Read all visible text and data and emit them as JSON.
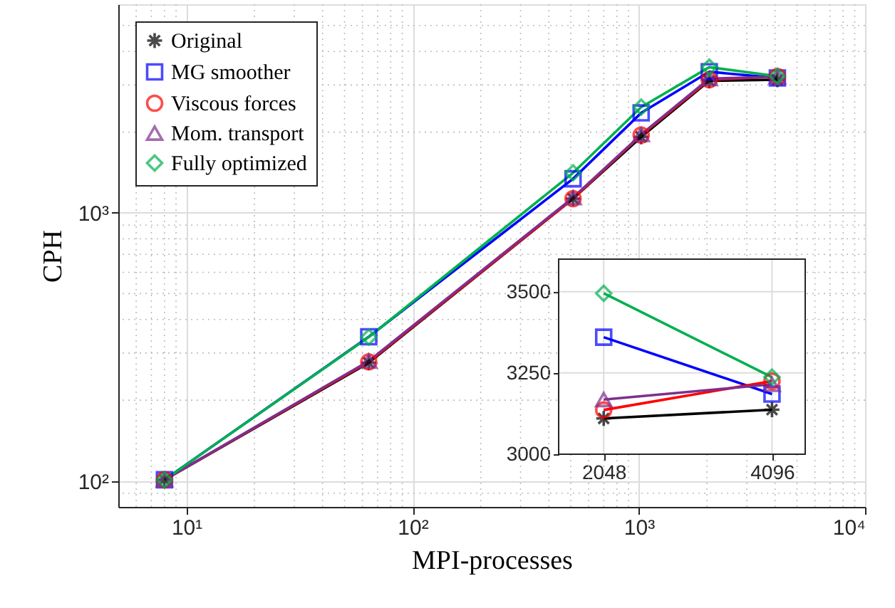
{
  "chart_data": [
    {
      "type": "line",
      "xlabel": "MPI-processes",
      "ylabel": "CPH",
      "x": [
        8,
        64,
        512,
        1024,
        2048,
        4096
      ],
      "series": [
        {
          "name": "Original",
          "color": "#000000",
          "marker": "cross",
          "values": [
            101,
            276,
            1130,
            1920,
            3110,
            3137
          ]
        },
        {
          "name": "MG smoother",
          "color": "#0000ff",
          "marker": "square",
          "values": [
            101,
            345,
            1340,
            2360,
            3360,
            3185
          ]
        },
        {
          "name": "Viscous forces",
          "color": "#ff0000",
          "marker": "circle",
          "values": [
            101,
            278,
            1130,
            1950,
            3136,
            3225
          ]
        },
        {
          "name": "Mom. transport",
          "color": "#7e2f8e",
          "marker": "triangle",
          "values": [
            101,
            280,
            1140,
            1960,
            3168,
            3215
          ]
        },
        {
          "name": "Fully optimized",
          "color": "#00b050",
          "marker": "diamond",
          "values": [
            101,
            344,
            1410,
            2480,
            3495,
            3237
          ]
        }
      ],
      "xlim": [
        5,
        10000
      ],
      "ylim": [
        80,
        6000
      ],
      "xticks": [
        {
          "value": 10,
          "label": "10¹"
        },
        {
          "value": 100,
          "label": "10²"
        },
        {
          "value": 1000,
          "label": "10³"
        },
        {
          "value": 10000,
          "label": "10⁴"
        }
      ],
      "yticks": [
        {
          "value": 100,
          "label": "10²"
        },
        {
          "value": 1000,
          "label": "10³"
        }
      ],
      "log": "xy",
      "grid": true,
      "legend": "top left"
    },
    {
      "type": "line",
      "x": [
        2048,
        4096
      ],
      "series": [
        {
          "color": "#000000",
          "marker": "cross",
          "values": [
            3110,
            3137
          ]
        },
        {
          "color": "#0000ff",
          "marker": "square",
          "values": [
            3360,
            3185
          ]
        },
        {
          "color": "#ff0000",
          "marker": "circle",
          "values": [
            3136,
            3225
          ]
        },
        {
          "color": "#7e2f8e",
          "marker": "triangle",
          "values": [
            3168,
            3215
          ]
        },
        {
          "color": "#00b050",
          "marker": "diamond",
          "values": [
            3495,
            3237
          ]
        }
      ],
      "xlim": [
        1500,
        4500
      ],
      "ylim": [
        3000,
        3600
      ],
      "xticks": [
        2048,
        4096
      ],
      "yticks": [
        3000,
        3250,
        3500
      ],
      "grid": true
    }
  ]
}
